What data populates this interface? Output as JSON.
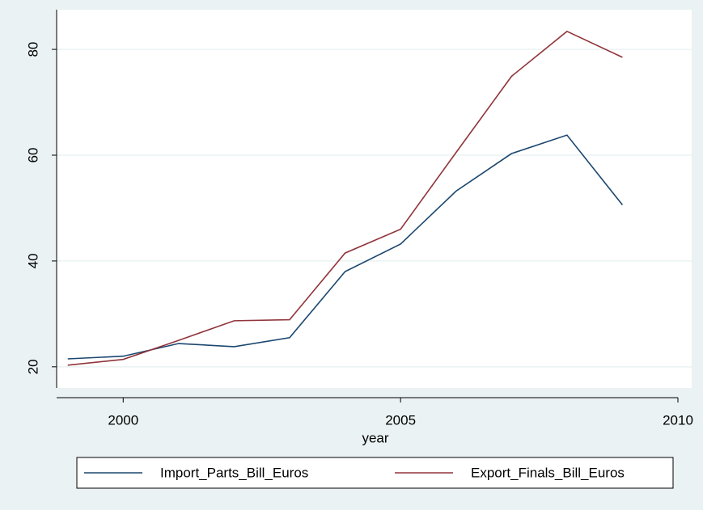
{
  "chart_data": {
    "type": "line",
    "x_label": "year",
    "x": [
      1999,
      2000,
      2001,
      2002,
      2003,
      2004,
      2005,
      2006,
      2007,
      2008,
      2009
    ],
    "series": [
      {
        "name": "Import_Parts_Bill_Euros",
        "color": "#1a476f",
        "values": [
          21.5,
          22,
          24.4,
          23.8,
          25.5,
          38,
          43.2,
          53.2,
          60.3,
          63.8,
          50.6
        ]
      },
      {
        "name": "Export_Finals_Bill_Euros",
        "color": "#90353b",
        "values": [
          20.3,
          21.4,
          25,
          28.7,
          28.9,
          41.5,
          46,
          60.5,
          74.9,
          83.4,
          78.5
        ]
      }
    ],
    "xlim": [
      1998.8,
      2010
    ],
    "xticks": [
      2000,
      2005,
      2010
    ],
    "ylim": [
      16,
      87.5
    ],
    "yticks": [
      20,
      40,
      60,
      80
    ],
    "grid": true,
    "legend": "bottom"
  }
}
